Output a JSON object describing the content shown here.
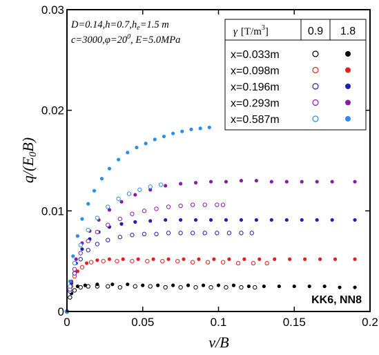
{
  "chart_data": {
    "type": "scatter",
    "xlabel": "v/B",
    "ylabel": "q/(E0B)",
    "xlim": [
      0,
      0.2
    ],
    "ylim": [
      0,
      0.03
    ],
    "x_ticks": [
      "0",
      "0.05",
      "0.1",
      "0.15",
      "0.2"
    ],
    "y_ticks": [
      "0",
      "0.01",
      "0.02",
      "0.03"
    ],
    "params_line1": "D=0.14,h=0.7,h",
    "params_line1_sub": "e",
    "params_line1_end": "=1.5 m",
    "params_line2": "c=3000,φ=20",
    "params_line2_sup": "0",
    "params_line2_end": ", E=5.0MPa",
    "corner_label": "KK6, NN8",
    "legend": {
      "header_gamma": "γ",
      "header_unit": "[T/m",
      "header_unit_sup": "3",
      "header_unit_end": "]",
      "col_open": "0.9",
      "col_filled": "1.8",
      "rows": [
        "x=0.033m",
        "x=0.098m",
        "x=0.196m",
        "x=0.293m",
        "x=0.587m"
      ]
    },
    "colors": {
      "x=0.033m": "#000000",
      "x=0.098m": "#e02020",
      "x=0.196m": "#1f1fb4",
      "x=0.293m": "#8a1aa8",
      "x=0.587m": "#2a8ee8"
    },
    "series": [
      {
        "name": "x=0.033m",
        "gamma": "0.9",
        "marker": "open",
        "color": "#000000",
        "x": [
          0.0,
          0.002,
          0.005,
          0.009,
          0.014,
          0.02,
          0.027,
          0.035,
          0.045,
          0.055,
          0.065,
          0.075,
          0.085,
          0.095,
          0.105,
          0.115,
          0.124
        ],
        "y": [
          0.0,
          0.0014,
          0.0021,
          0.0024,
          0.0025,
          0.0025,
          0.0025,
          0.0024,
          0.0025,
          0.0025,
          0.0024,
          0.0024,
          0.0024,
          0.0024,
          0.0024,
          0.0024,
          0.0024
        ]
      },
      {
        "name": "x=0.033m",
        "gamma": "1.8",
        "marker": "filled",
        "color": "#000000",
        "x": [
          0.0,
          0.003,
          0.007,
          0.012,
          0.02,
          0.03,
          0.04,
          0.05,
          0.06,
          0.07,
          0.08,
          0.09,
          0.1,
          0.11,
          0.12,
          0.13,
          0.14,
          0.15,
          0.16,
          0.17,
          0.18,
          0.19
        ],
        "y": [
          0.0,
          0.0018,
          0.0025,
          0.0026,
          0.0027,
          0.0027,
          0.0027,
          0.0026,
          0.0026,
          0.0026,
          0.0026,
          0.0026,
          0.0026,
          0.0026,
          0.0025,
          0.0025,
          0.0025,
          0.0025,
          0.0025,
          0.0025,
          0.0024,
          0.0024
        ]
      },
      {
        "name": "x=0.098m",
        "gamma": "0.9",
        "marker": "open",
        "color": "#e02020",
        "x": [
          0.0,
          0.002,
          0.005,
          0.01,
          0.016,
          0.024,
          0.033,
          0.043,
          0.053,
          0.063,
          0.073,
          0.083,
          0.093,
          0.103,
          0.113,
          0.123,
          0.132
        ],
        "y": [
          0.0,
          0.002,
          0.0035,
          0.0044,
          0.0049,
          0.005,
          0.005,
          0.005,
          0.005,
          0.005,
          0.005,
          0.0049,
          0.0049,
          0.0049,
          0.0048,
          0.0048,
          0.0048
        ]
      },
      {
        "name": "x=0.098m",
        "gamma": "1.8",
        "marker": "filled",
        "color": "#e02020",
        "x": [
          0.0,
          0.003,
          0.007,
          0.013,
          0.02,
          0.028,
          0.037,
          0.047,
          0.057,
          0.067,
          0.077,
          0.087,
          0.097,
          0.107,
          0.117,
          0.127,
          0.137,
          0.147,
          0.157,
          0.167,
          0.177,
          0.19
        ],
        "y": [
          0.0,
          0.0025,
          0.004,
          0.0048,
          0.0051,
          0.0052,
          0.0052,
          0.0052,
          0.0052,
          0.0052,
          0.0052,
          0.0052,
          0.0052,
          0.0052,
          0.0052,
          0.0052,
          0.0052,
          0.0052,
          0.0052,
          0.0052,
          0.0052,
          0.0052
        ]
      },
      {
        "name": "x=0.196m",
        "gamma": "0.9",
        "marker": "open",
        "color": "#1f1fb4",
        "x": [
          0.0,
          0.002,
          0.005,
          0.009,
          0.014,
          0.02,
          0.027,
          0.035,
          0.043,
          0.051,
          0.059,
          0.067,
          0.075,
          0.083,
          0.091,
          0.099,
          0.107,
          0.115,
          0.122
        ],
        "y": [
          0.0,
          0.002,
          0.0038,
          0.0052,
          0.0061,
          0.0067,
          0.0071,
          0.0074,
          0.0076,
          0.0077,
          0.0077,
          0.0078,
          0.0078,
          0.0078,
          0.0078,
          0.0078,
          0.0078,
          0.0078,
          0.0078
        ]
      },
      {
        "name": "x=0.196m",
        "gamma": "1.8",
        "marker": "filled",
        "color": "#1f1fb4",
        "x": [
          0.0,
          0.003,
          0.006,
          0.01,
          0.015,
          0.021,
          0.028,
          0.036,
          0.045,
          0.055,
          0.065,
          0.075,
          0.085,
          0.095,
          0.105,
          0.115,
          0.125,
          0.135,
          0.145,
          0.155,
          0.165,
          0.175,
          0.19
        ],
        "y": [
          0.0,
          0.0028,
          0.0048,
          0.0062,
          0.0072,
          0.0079,
          0.0084,
          0.0087,
          0.0089,
          0.009,
          0.0091,
          0.0091,
          0.0091,
          0.0091,
          0.0091,
          0.0091,
          0.0091,
          0.0091,
          0.0091,
          0.0091,
          0.0091,
          0.0091,
          0.0091
        ]
      },
      {
        "name": "x=0.293m",
        "gamma": "0.9",
        "marker": "open",
        "color": "#8a1aa8",
        "x": [
          0.0,
          0.002,
          0.005,
          0.009,
          0.014,
          0.02,
          0.027,
          0.035,
          0.043,
          0.051,
          0.059,
          0.067,
          0.075,
          0.083,
          0.091,
          0.099,
          0.103
        ],
        "y": [
          0.0,
          0.0022,
          0.0042,
          0.0058,
          0.007,
          0.0079,
          0.0086,
          0.0092,
          0.0097,
          0.01,
          0.0102,
          0.0104,
          0.0105,
          0.0106,
          0.0106,
          0.0106,
          0.0106
        ]
      },
      {
        "name": "x=0.293m",
        "gamma": "1.8",
        "marker": "filled",
        "color": "#8a1aa8",
        "x": [
          0.0,
          0.003,
          0.006,
          0.01,
          0.015,
          0.021,
          0.028,
          0.036,
          0.045,
          0.055,
          0.065,
          0.075,
          0.085,
          0.095,
          0.105,
          0.115,
          0.125,
          0.135,
          0.145,
          0.155,
          0.165,
          0.175,
          0.19
        ],
        "y": [
          0.0,
          0.003,
          0.0052,
          0.0068,
          0.008,
          0.0091,
          0.0101,
          0.0109,
          0.0116,
          0.0121,
          0.0125,
          0.0127,
          0.0128,
          0.0129,
          0.0129,
          0.013,
          0.013,
          0.0129,
          0.0129,
          0.0129,
          0.0129,
          0.0129,
          0.0129
        ]
      },
      {
        "name": "x=0.587m",
        "gamma": "0.9",
        "marker": "open",
        "color": "#2a8ee8",
        "x": [
          0.0,
          0.002,
          0.005,
          0.009,
          0.014,
          0.02,
          0.027,
          0.034,
          0.041,
          0.048,
          0.055,
          0.062
        ],
        "y": [
          0.0,
          0.0025,
          0.0048,
          0.0066,
          0.0081,
          0.0093,
          0.0104,
          0.0112,
          0.0117,
          0.0121,
          0.0124,
          0.0126
        ]
      },
      {
        "name": "x=0.587m",
        "gamma": "1.8",
        "marker": "filled",
        "color": "#2a8ee8",
        "x": [
          0.0,
          0.002,
          0.004,
          0.007,
          0.01,
          0.014,
          0.018,
          0.023,
          0.028,
          0.034,
          0.04,
          0.046,
          0.052,
          0.058,
          0.064,
          0.07,
          0.076,
          0.082,
          0.088,
          0.094
        ],
        "y": [
          0.0,
          0.003,
          0.0055,
          0.0075,
          0.0092,
          0.0107,
          0.012,
          0.0132,
          0.0142,
          0.0151,
          0.0158,
          0.0163,
          0.0167,
          0.0171,
          0.0174,
          0.0177,
          0.0179,
          0.0181,
          0.0182,
          0.0183
        ]
      }
    ]
  }
}
